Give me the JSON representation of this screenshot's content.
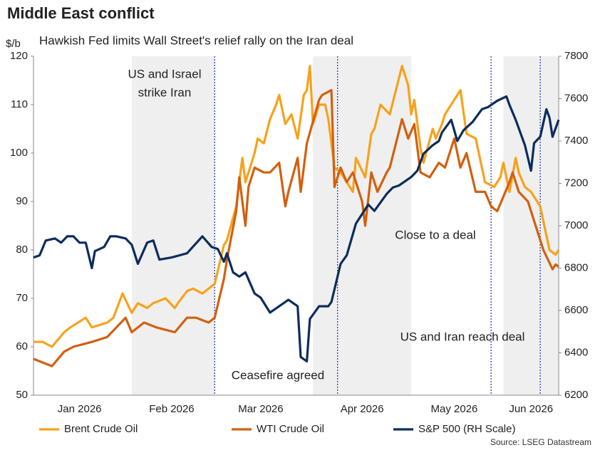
{
  "chart_data": {
    "type": "line",
    "title": "Middle East conflict",
    "subtitle": "Hawkish Fed limits Wall Street's relief rally on the Iran deal",
    "y_label": "$/b",
    "source": "Source: LSEG Datastream",
    "xlim": [
      0,
      171
    ],
    "xticks": [
      {
        "value": 15,
        "label": "Jan 2026"
      },
      {
        "value": 45,
        "label": "Feb 2026"
      },
      {
        "value": 74,
        "label": "Mar 2026"
      },
      {
        "value": 107,
        "label": "Apr 2026"
      },
      {
        "value": 137,
        "label": "May 2026"
      },
      {
        "value": 162,
        "label": "Jun 2026"
      }
    ],
    "ylim": [
      50,
      120
    ],
    "yticks": [
      50,
      60,
      70,
      80,
      90,
      100,
      110,
      120
    ],
    "y2lim": [
      6200,
      7800
    ],
    "y2ticks": [
      6200,
      6400,
      6600,
      6800,
      7000,
      7200,
      7400,
      7600,
      7800
    ],
    "shaded_periods": [
      [
        32,
        59
      ],
      [
        91,
        123
      ],
      [
        153,
        171
      ]
    ],
    "event_lines": [
      59,
      99,
      149,
      165
    ],
    "annotations": [
      {
        "lines": [
          "US and Israel",
          "strike Iran"
        ]
      },
      {
        "lines": [
          "Ceasefire agreed"
        ]
      },
      {
        "lines": [
          "Close to a deal"
        ]
      },
      {
        "lines": [
          "US and Iran reach deal"
        ]
      }
    ],
    "series": [
      {
        "name": "Brent Crude Oil",
        "color": "#f7a21b",
        "x": [
          0,
          3,
          6,
          10,
          12,
          17,
          19,
          24,
          26,
          29,
          32,
          34,
          37,
          39,
          43,
          46,
          47,
          50,
          52,
          55,
          59,
          62,
          63,
          66,
          68,
          69,
          72,
          73,
          75,
          77,
          79,
          80,
          82,
          84,
          86,
          88,
          89,
          90,
          91,
          93,
          95,
          96,
          98,
          100,
          102,
          104,
          105,
          108,
          110,
          111,
          113,
          116,
          120,
          122,
          123,
          124,
          126,
          127,
          130,
          131,
          133,
          134,
          137,
          139,
          141,
          144,
          147,
          150,
          152,
          153,
          155,
          157,
          158,
          160,
          162,
          165,
          168,
          170,
          171
        ],
        "values": [
          61,
          61,
          60,
          63,
          64,
          66,
          64,
          65,
          66,
          71,
          67,
          69,
          68,
          69,
          70,
          68,
          69,
          71.5,
          72,
          71,
          73,
          81,
          82,
          89,
          99,
          94,
          100,
          103,
          102,
          107,
          110,
          112,
          106,
          108,
          103,
          112,
          113,
          118,
          106,
          110,
          110,
          107,
          97,
          96,
          94,
          92,
          99,
          95,
          104,
          105,
          110,
          108,
          118,
          114,
          108,
          111,
          101,
          98,
          105,
          103,
          106,
          108,
          111,
          113,
          104,
          103,
          94,
          93,
          95,
          98,
          92,
          99,
          96,
          93,
          92,
          89,
          80,
          79,
          80
        ]
      },
      {
        "name": "WTI Crude Oil",
        "color": "#d2600f",
        "x": [
          0,
          6,
          10,
          13,
          19,
          24,
          30,
          32,
          36,
          40,
          46,
          50,
          53,
          57,
          59,
          62,
          63,
          66,
          67,
          69,
          70,
          72,
          75,
          77,
          80,
          82,
          83,
          86,
          87,
          89,
          93,
          94,
          97,
          98,
          100,
          102,
          104,
          107,
          108,
          110,
          112,
          115,
          116,
          120,
          122,
          124,
          126,
          129,
          132,
          134,
          137,
          139,
          141,
          144,
          147,
          149,
          151,
          155,
          156,
          158,
          161,
          162,
          166,
          169,
          170,
          171
        ],
        "values": [
          57.5,
          56,
          59,
          60,
          61,
          62,
          66,
          63,
          65,
          64,
          63,
          66,
          66,
          65,
          66,
          74,
          78,
          88,
          95,
          85,
          93,
          97,
          96,
          96,
          98,
          89,
          92,
          99,
          92,
          102,
          111,
          112,
          113,
          93,
          97,
          94,
          96,
          90,
          85,
          96,
          92,
          96,
          97,
          107,
          103,
          106,
          96,
          95,
          98,
          97,
          103,
          97,
          100,
          92,
          92,
          89,
          88,
          94,
          96,
          92,
          90,
          88,
          80,
          76,
          77,
          76.5
        ]
      },
      {
        "name": "S&P 500 (RH Scale)",
        "color": "#0c2d5c",
        "axis": "y2",
        "x": [
          0,
          2,
          4,
          7,
          9,
          11,
          13,
          15,
          17,
          19,
          20,
          23,
          25,
          27,
          30,
          32,
          34,
          37,
          39,
          41,
          45,
          50,
          55,
          58,
          60,
          62,
          63,
          65,
          67,
          69,
          72,
          74,
          77,
          80,
          83,
          86,
          87,
          89,
          90,
          93,
          96,
          97,
          100,
          102,
          105,
          109,
          111,
          115,
          117,
          119,
          123,
          125,
          127,
          130,
          132,
          133,
          136,
          138,
          140,
          143,
          146,
          148,
          151,
          154,
          155,
          157,
          160,
          162,
          163,
          165,
          167,
          168,
          169,
          171
        ],
        "values": [
          6850,
          6860,
          6930,
          6940,
          6920,
          6950,
          6950,
          6920,
          6920,
          6800,
          6880,
          6900,
          6950,
          6950,
          6940,
          6910,
          6820,
          6920,
          6930,
          6840,
          6850,
          6870,
          6950,
          6900,
          6890,
          6830,
          6870,
          6780,
          6760,
          6780,
          6680,
          6660,
          6590,
          6620,
          6650,
          6620,
          6380,
          6360,
          6560,
          6620,
          6620,
          6640,
          6820,
          6860,
          7010,
          7100,
          7070,
          7150,
          7180,
          7190,
          7230,
          7260,
          7340,
          7380,
          7400,
          7440,
          7500,
          7400,
          7450,
          7490,
          7550,
          7560,
          7590,
          7610,
          7570,
          7500,
          7380,
          7260,
          7390,
          7420,
          7550,
          7510,
          7420,
          7500
        ]
      }
    ]
  }
}
